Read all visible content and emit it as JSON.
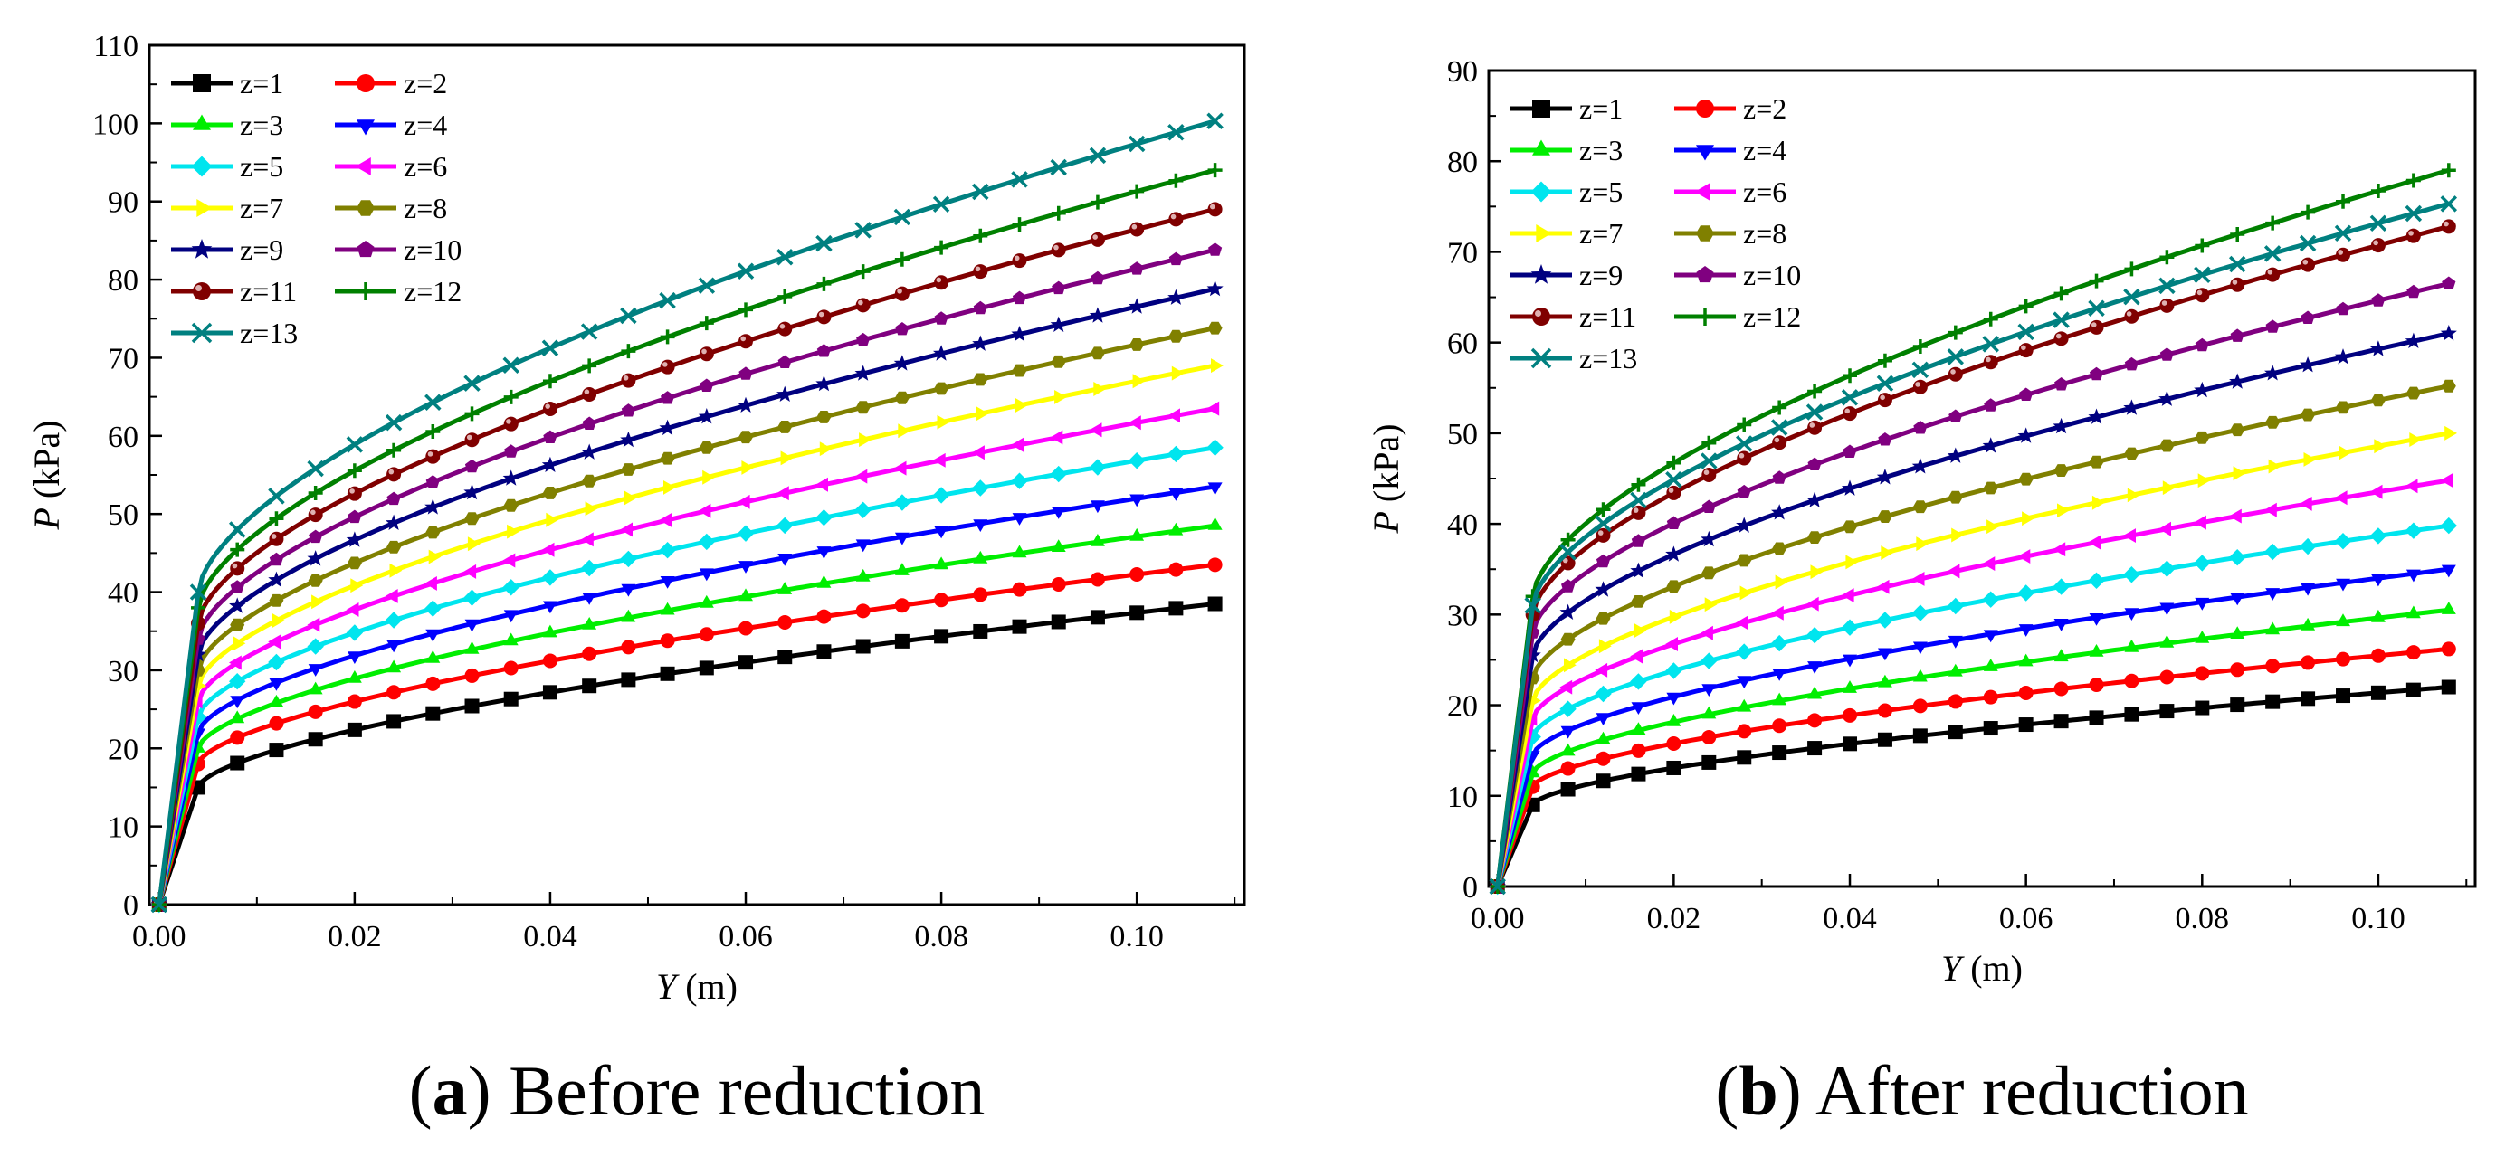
{
  "chart_data": [
    {
      "type": "line",
      "caption_letter": "a",
      "caption_text": "Before reduction",
      "ylabel_var": "P",
      "ylabel_unit": "(kPa)",
      "xlabel_var": "Y",
      "xlabel_unit": "(m)",
      "xlim": [
        -0.001,
        0.111
      ],
      "ylim": [
        0,
        110
      ],
      "x_ticks": [
        0.0,
        0.02,
        0.04,
        0.06,
        0.08,
        0.1
      ],
      "x_tick_labels": [
        "0.00",
        "0.02",
        "0.04",
        "0.06",
        "0.08",
        "0.10"
      ],
      "y_ticks": [
        0,
        10,
        20,
        30,
        40,
        50,
        60,
        70,
        80,
        90,
        100,
        110
      ],
      "y_tick_labels": [
        "0",
        "10",
        "20",
        "30",
        "40",
        "50",
        "60",
        "70",
        "80",
        "90",
        "100",
        "110"
      ],
      "grid": false,
      "legend_position": "top-left",
      "series": [
        {
          "name": "z=1",
          "knee": 15.0,
          "end": 38.5
        },
        {
          "name": "z=2",
          "knee": 18.0,
          "end": 43.5
        },
        {
          "name": "z=3",
          "knee": 20.0,
          "end": 48.5
        },
        {
          "name": "z=4",
          "knee": 22.0,
          "end": 53.5
        },
        {
          "name": "z=5",
          "knee": 24.0,
          "end": 58.5
        },
        {
          "name": "z=6",
          "knee": 26.0,
          "end": 63.5
        },
        {
          "name": "z=7",
          "knee": 28.0,
          "end": 69.0
        },
        {
          "name": "z=8",
          "knee": 30.0,
          "end": 73.8
        },
        {
          "name": "z=9",
          "knee": 32.0,
          "end": 78.8
        },
        {
          "name": "z=10",
          "knee": 34.0,
          "end": 83.8
        },
        {
          "name": "z=11",
          "knee": 36.0,
          "end": 89.0
        },
        {
          "name": "z=12",
          "knee": 38.0,
          "end": 94.0
        },
        {
          "name": "z=13",
          "knee": 40.0,
          "end": 100.3
        }
      ]
    },
    {
      "type": "line",
      "caption_letter": "b",
      "caption_text": "After reduction",
      "ylabel_var": "P",
      "ylabel_unit": "(kPa)",
      "xlabel_var": "Y",
      "xlabel_unit": "(m)",
      "xlim": [
        -0.001,
        0.111
      ],
      "ylim": [
        0,
        90
      ],
      "x_ticks": [
        0.0,
        0.02,
        0.04,
        0.06,
        0.08,
        0.1
      ],
      "x_tick_labels": [
        "0.00",
        "0.02",
        "0.04",
        "0.06",
        "0.08",
        "0.10"
      ],
      "y_ticks": [
        0,
        10,
        20,
        30,
        40,
        50,
        60,
        70,
        80,
        90
      ],
      "y_tick_labels": [
        "0",
        "10",
        "20",
        "30",
        "40",
        "50",
        "60",
        "70",
        "80",
        "90"
      ],
      "grid": false,
      "legend_position": "top-left",
      "series": [
        {
          "name": "z=1",
          "knee": 9.0,
          "end": 22.0
        },
        {
          "name": "z=2",
          "knee": 11.0,
          "end": 26.2
        },
        {
          "name": "z=3",
          "knee": 12.5,
          "end": 30.5
        },
        {
          "name": "z=4",
          "knee": 14.5,
          "end": 35.0
        },
        {
          "name": "z=5",
          "knee": 16.5,
          "end": 39.8
        },
        {
          "name": "z=6",
          "knee": 18.5,
          "end": 44.8
        },
        {
          "name": "z=7",
          "knee": 20.5,
          "end": 50.0
        },
        {
          "name": "z=8",
          "knee": 23.0,
          "end": 55.2
        },
        {
          "name": "z=9",
          "knee": 25.5,
          "end": 61.0
        },
        {
          "name": "z=10",
          "knee": 28.0,
          "end": 66.5
        },
        {
          "name": "z=11",
          "knee": 30.0,
          "end": 72.8
        },
        {
          "name": "z=12",
          "knee": 32.0,
          "end": 79.0
        },
        {
          "name": "z=13",
          "knee": 31.0,
          "end": 75.3
        }
      ]
    }
  ],
  "series_styles": [
    {
      "color": "#000000",
      "marker": "square"
    },
    {
      "color": "#ff0000",
      "marker": "circle"
    },
    {
      "color": "#00ee00",
      "marker": "triangle-up"
    },
    {
      "color": "#0000ff",
      "marker": "triangle-down"
    },
    {
      "color": "#00e5ee",
      "marker": "diamond"
    },
    {
      "color": "#ff00ff",
      "marker": "triangle-left"
    },
    {
      "color": "#ffff00",
      "marker": "triangle-right"
    },
    {
      "color": "#808000",
      "marker": "hexagon"
    },
    {
      "color": "#000080",
      "marker": "star"
    },
    {
      "color": "#800080",
      "marker": "pentagon"
    },
    {
      "color": "#800000",
      "marker": "sphere"
    },
    {
      "color": "#008000",
      "marker": "plus"
    },
    {
      "color": "#008080",
      "marker": "cross"
    }
  ]
}
